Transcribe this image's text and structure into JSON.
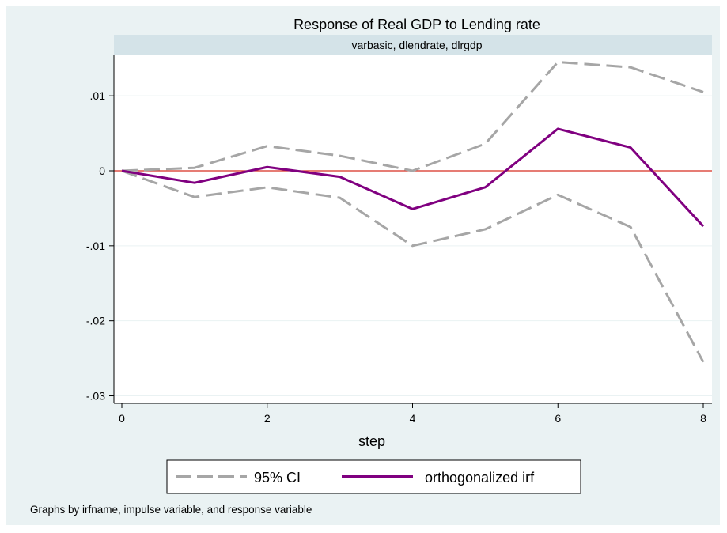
{
  "chart_data": {
    "type": "line",
    "title": "Response of Real GDP to Lending rate",
    "subtitle": "varbasic, dlendrate, dlrgdp",
    "xlabel": "step",
    "ylabel": "",
    "x": [
      0,
      1,
      2,
      3,
      4,
      5,
      6,
      7,
      8
    ],
    "xlim": [
      0,
      8
    ],
    "ylim": [
      -0.031,
      0.0155
    ],
    "xticks": [
      0,
      2,
      4,
      6,
      8
    ],
    "xtick_labels": [
      "0",
      "2",
      "4",
      "6",
      "8"
    ],
    "yticks": [
      -0.03,
      -0.02,
      -0.01,
      0,
      0.01
    ],
    "ytick_labels": [
      "-.03",
      "-.02",
      "-.01",
      "0",
      ".01"
    ],
    "grid": true,
    "zero_line": {
      "value": 0,
      "color": "#d62d20"
    },
    "legend_position": "bottom",
    "series": [
      {
        "name": "95% CI",
        "color": "#a6a6a6",
        "style": "dashed",
        "values_upper": [
          0,
          0.0004,
          0.0033,
          0.002,
          0.0,
          0.0036,
          0.0145,
          0.0138,
          0.0105
        ],
        "values_lower": [
          0,
          -0.0035,
          -0.0022,
          -0.0036,
          -0.01,
          -0.0078,
          -0.0032,
          -0.0075,
          -0.0255
        ]
      },
      {
        "name": "orthogonalized irf",
        "color": "#800080",
        "style": "solid",
        "values": [
          0,
          -0.0016,
          0.0005,
          -0.0008,
          -0.0051,
          -0.0022,
          0.0056,
          0.0031,
          -0.0074
        ]
      }
    ]
  },
  "note": "Graphs by irfname, impulse variable, and response variable"
}
